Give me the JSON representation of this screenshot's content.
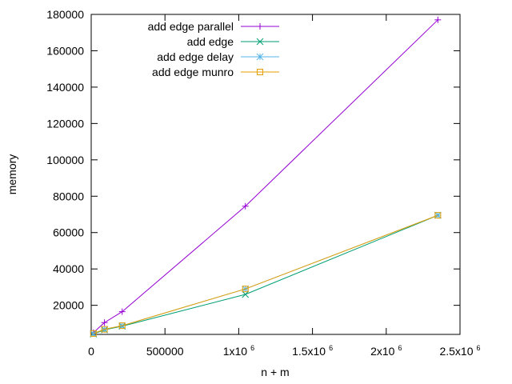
{
  "chart_data": {
    "type": "line",
    "xlabel": "n + m",
    "ylabel": "memory",
    "xlim": [
      0,
      2500000
    ],
    "ylim": [
      4000,
      180000
    ],
    "grid": false,
    "legend_position": "top-left",
    "x_ticks": [
      {
        "value": 0,
        "mantissa": "0",
        "exp": ""
      },
      {
        "value": 500000,
        "mantissa": "500000",
        "exp": ""
      },
      {
        "value": 1000000,
        "mantissa": "1x10",
        "exp": "6"
      },
      {
        "value": 1500000,
        "mantissa": "1.5x10",
        "exp": "6"
      },
      {
        "value": 2000000,
        "mantissa": "2x10",
        "exp": "6"
      },
      {
        "value": 2500000,
        "mantissa": "2.5x10",
        "exp": "6"
      }
    ],
    "y_ticks": [
      {
        "value": 20000,
        "label": "20000"
      },
      {
        "value": 40000,
        "label": "40000"
      },
      {
        "value": 60000,
        "label": "60000"
      },
      {
        "value": 80000,
        "label": "80000"
      },
      {
        "value": 100000,
        "label": "100000"
      },
      {
        "value": 120000,
        "label": "120000"
      },
      {
        "value": 140000,
        "label": "140000"
      },
      {
        "value": 160000,
        "label": "160000"
      },
      {
        "value": 180000,
        "label": "180000"
      }
    ],
    "series": [
      {
        "name": "add edge parallel",
        "color": "#9400d3",
        "marker": "plus",
        "x": [
          15000,
          90000,
          210000,
          1045000,
          2350000
        ],
        "y": [
          5000,
          10500,
          16500,
          74500,
          177000
        ]
      },
      {
        "name": "add edge",
        "color": "#009e73",
        "marker": "cross",
        "x": [
          15000,
          90000,
          210000,
          1045000,
          2350000
        ],
        "y": [
          4200,
          6500,
          8500,
          26000,
          69500
        ]
      },
      {
        "name": "add edge delay",
        "color": "#56b4e9",
        "marker": "star",
        "x": [
          15000,
          90000,
          210000,
          1045000,
          2350000
        ],
        "y": [
          4500,
          6800,
          8800,
          29000,
          69500
        ]
      },
      {
        "name": "add edge munro",
        "color": "#e69f00",
        "marker": "square",
        "x": [
          15000,
          90000,
          210000,
          1045000,
          2350000
        ],
        "y": [
          4500,
          6800,
          8800,
          29000,
          69500
        ]
      }
    ]
  }
}
